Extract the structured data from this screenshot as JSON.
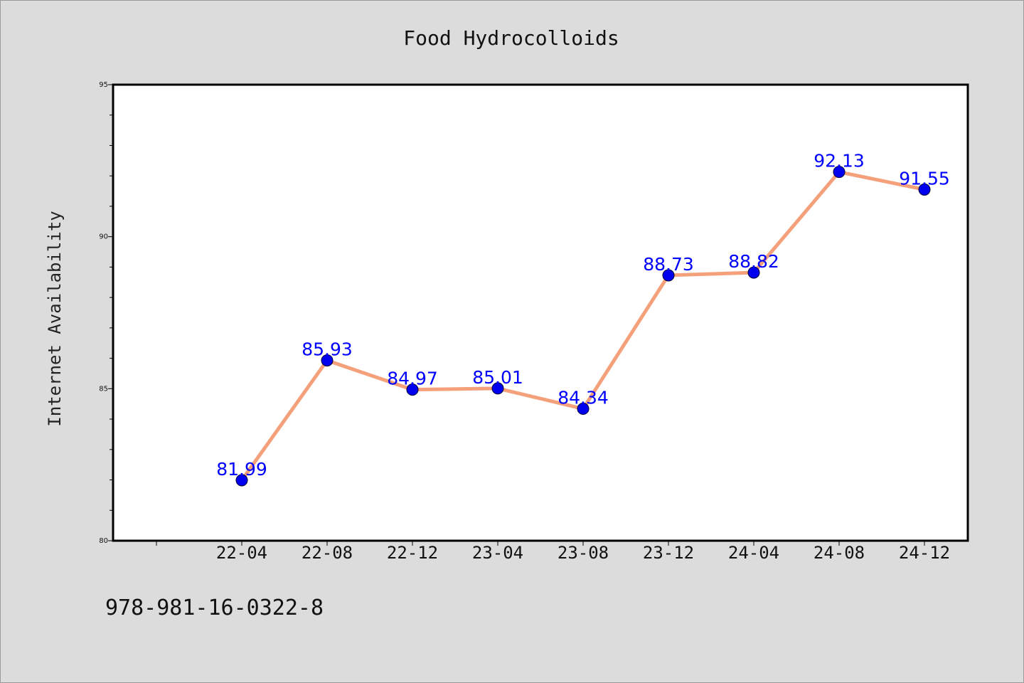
{
  "chart_data": {
    "type": "line",
    "title": "Food Hydrocolloids",
    "xlabel": "",
    "ylabel": "Internet Availability",
    "categories": [
      "22-04",
      "22-08",
      "22-12",
      "23-04",
      "23-08",
      "23-12",
      "24-04",
      "24-08",
      "24-12"
    ],
    "series": [
      {
        "values": [
          81.99,
          85.93,
          84.97,
          85.01,
          84.34,
          88.73,
          88.82,
          92.13,
          91.55
        ],
        "labels": [
          "81.99",
          "85.93",
          "84.97",
          "85.01",
          "84.34",
          "88.73",
          "88.82",
          "92.13",
          "91.55"
        ],
        "line_color": "#f4a07a",
        "marker_color": "#0000ee",
        "label_color": "#0000ff"
      }
    ],
    "ylim": [
      80,
      95
    ],
    "yticks": [
      "80",
      "85",
      "90",
      "95"
    ],
    "grid": false,
    "legend": "none"
  },
  "footer": {
    "text": "978-981-16-0322-8"
  }
}
